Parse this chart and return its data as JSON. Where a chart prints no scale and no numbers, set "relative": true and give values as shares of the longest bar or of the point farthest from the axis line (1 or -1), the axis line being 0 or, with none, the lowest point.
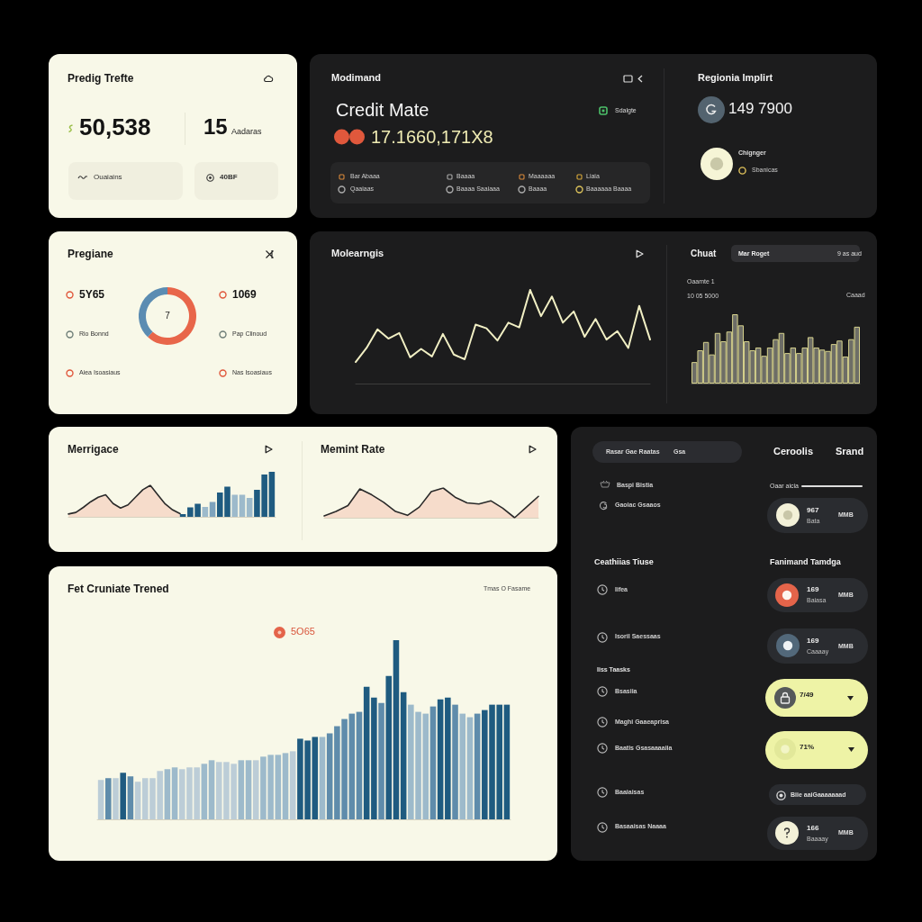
{
  "chart_data": [
    {
      "type": "other",
      "title": "Predig Trefte",
      "annotations": [
        "50,538",
        "15",
        "Aadaras",
        "Ouaiains",
        "40BF"
      ]
    },
    {
      "type": "other",
      "title": "Modimand",
      "annotations": [
        "Credit Mate",
        "17.1660,171X8",
        "Sdalgte",
        "Bar Abaaa",
        "Qaaiaas",
        "Baaaa",
        "Baaaa Saaiaaa",
        "Maaaaaa",
        "Baaaa",
        "Liaia",
        "Baaaaaa Baaaa"
      ]
    },
    {
      "type": "other",
      "title": "Regionia Implirt",
      "annotations": [
        "149 7900",
        "Chignger",
        "Sbanicas"
      ]
    },
    {
      "type": "donut",
      "title": "Pregiane",
      "categories": [
        null,
        null
      ],
      "values": [
        62,
        38
      ],
      "colors": [
        "#e8664a",
        "#5b8cb2"
      ],
      "annotations": [
        "7",
        "5Y65",
        "Rio Bonnd",
        "Aiea Isoasiaus",
        "1069",
        "Pap Clinoud",
        "Nas Isoasiaus"
      ]
    },
    {
      "type": "line",
      "title": "Molearngis",
      "relative": true,
      "categories": [
        null,
        null,
        null,
        null,
        null,
        null,
        null,
        null,
        null,
        null,
        null,
        null,
        null,
        null,
        null,
        null,
        null,
        null,
        null,
        null,
        null,
        null,
        null,
        null,
        null,
        null,
        null,
        null
      ],
      "values": [
        0.23,
        0.38,
        0.58,
        0.48,
        0.54,
        0.28,
        0.37,
        0.29,
        0.53,
        0.31,
        0.26,
        0.63,
        0.59,
        0.46,
        0.65,
        0.6,
        1.0,
        0.72,
        0.93,
        0.65,
        0.77,
        0.5,
        0.69,
        0.47,
        0.56,
        0.38,
        0.83,
        0.47
      ],
      "color": "#f1efc4"
    },
    {
      "type": "bar",
      "title": "Chuat",
      "relative": true,
      "categories": [
        null,
        null,
        null,
        null,
        null,
        null,
        null,
        null,
        null,
        null,
        null,
        null,
        null,
        null,
        null,
        null,
        null,
        null,
        null,
        null,
        null,
        null,
        null,
        null,
        null,
        null,
        null,
        null,
        null
      ],
      "values": [
        0.31,
        0.48,
        0.6,
        0.42,
        0.73,
        0.61,
        0.75,
        1.0,
        0.84,
        0.61,
        0.48,
        0.52,
        0.4,
        0.52,
        0.64,
        0.73,
        0.44,
        0.52,
        0.44,
        0.52,
        0.67,
        0.52,
        0.49,
        0.47,
        0.57,
        0.62,
        0.39,
        0.64,
        0.82
      ],
      "color": "#6d6d66",
      "annotations": [
        "Mar Roget",
        "9 as aud",
        "Oaamte 1",
        "10 05 5000",
        "Caaad"
      ]
    },
    {
      "type": "area",
      "title": "Merrigace",
      "relative": true,
      "categories": [
        null,
        null,
        null,
        null,
        null,
        null,
        null,
        null,
        null,
        null,
        null,
        null,
        null,
        null,
        null,
        null
      ],
      "values": [
        0.09,
        0.14,
        0.3,
        0.48,
        0.62,
        0.7,
        0.42,
        0.28,
        0.38,
        0.62,
        0.86,
        1.0,
        0.7,
        0.41,
        0.22,
        0.1
      ],
      "color": "#f6dccb"
    },
    {
      "type": "bar",
      "relative": true,
      "categories": [
        null,
        null,
        null,
        null,
        null,
        null,
        null,
        null,
        null,
        null,
        null,
        null,
        null
      ],
      "values": [
        0.06,
        0.21,
        0.29,
        0.22,
        0.33,
        0.54,
        0.67,
        0.49,
        0.49,
        0.42,
        0.6,
        0.94,
        1.0
      ],
      "colors": [
        "#1f5b80",
        "#1f5b80",
        "#1f5b80",
        "#9dbacb",
        "#7ea3bd",
        "#1f5b80",
        "#1f5b80",
        "#9dbacb",
        "#9dbacb",
        "#9dbacb",
        "#1f5b80",
        "#1f5b80",
        "#1f5b80"
      ]
    },
    {
      "type": "area",
      "title": "Memint Rate",
      "relative": true,
      "categories": [
        null,
        null,
        null,
        null,
        null,
        null,
        null,
        null,
        null,
        null,
        null,
        null,
        null,
        null,
        null,
        null,
        null,
        null,
        null
      ],
      "values": [
        0.06,
        0.21,
        0.41,
        0.97,
        0.77,
        0.52,
        0.21,
        0.08,
        0.36,
        0.88,
        1.0,
        0.69,
        0.5,
        0.46,
        0.57,
        0.32,
        0.0,
        0.36,
        0.72
      ],
      "color": "#f6dccb"
    },
    {
      "type": "bar",
      "title": "Fet Cruniate Trened",
      "relative": true,
      "categories": [
        null,
        null,
        null,
        null,
        null,
        null,
        null,
        null,
        null,
        null,
        null,
        null,
        null,
        null,
        null,
        null,
        null,
        null,
        null,
        null,
        null,
        null,
        null,
        null,
        null,
        null,
        null,
        null,
        null,
        null,
        null,
        null,
        null,
        null,
        null,
        null,
        null,
        null,
        null,
        null,
        null,
        null,
        null,
        null,
        null,
        null,
        null,
        null,
        null,
        null,
        null,
        null,
        null,
        null,
        null,
        null
      ],
      "values": [
        0.22,
        0.23,
        0.23,
        0.26,
        0.24,
        0.21,
        0.23,
        0.23,
        0.27,
        0.28,
        0.29,
        0.28,
        0.29,
        0.29,
        0.31,
        0.33,
        0.32,
        0.32,
        0.31,
        0.33,
        0.33,
        0.33,
        0.35,
        0.36,
        0.36,
        0.37,
        0.38,
        0.45,
        0.44,
        0.46,
        0.46,
        0.48,
        0.52,
        0.56,
        0.59,
        0.6,
        0.74,
        0.68,
        0.65,
        0.8,
        1.0,
        0.71,
        0.64,
        0.6,
        0.59,
        0.63,
        0.67,
        0.68,
        0.64,
        0.59,
        0.57,
        0.59,
        0.61,
        0.64,
        0.64,
        0.64
      ],
      "colors": [
        "#bccdd7",
        "#5f8cab",
        "#bccdd7",
        "#1f5b80",
        "#5f8cab",
        "#bccdd7",
        "#bccdd7",
        "#bccdd7",
        "#bccdd7",
        "#9dbacb",
        "#9dbacb",
        "#bccdd7",
        "#bccdd7",
        "#bccdd7",
        "#9dbacb",
        "#9dbacb",
        "#bccdd7",
        "#bccdd7",
        "#bccdd7",
        "#9dbacb",
        "#9dbacb",
        "#bccdd7",
        "#9dbacb",
        "#9dbacb",
        "#9dbacb",
        "#9dbacb",
        "#bccdd7",
        "#1f5b80",
        "#1f5b80",
        "#1f5b80",
        "#9dbacb",
        "#5f8cab",
        "#5f8cab",
        "#5f8cab",
        "#5f8cab",
        "#5f8cab",
        "#1f5b80",
        "#1f5b80",
        "#5f8cab",
        "#1f5b80",
        "#1f5b80",
        "#1f5b80",
        "#9dbacb",
        "#9dbacb",
        "#9dbacb",
        "#5f8cab",
        "#1f5b80",
        "#1f5b80",
        "#5f8cab",
        "#9dbacb",
        "#9dbacb",
        "#5f8cab",
        "#1f5b80",
        "#1f5b80",
        "#1f5b80",
        "#1f5b80"
      ],
      "annotations": [
        "5O65",
        "Tmas O Fasame"
      ]
    },
    {
      "type": "other",
      "annotations": [
        "Rasar Gae Raatas",
        "Gsa",
        "Ceroolis",
        "Srand",
        "Baspi Bistia",
        "Gaoiac Gsaaos",
        "Oaar aicia",
        "967",
        "Bata",
        "MMB",
        "Ceathiias Tiuse",
        "Fanimand Tamdga",
        "Iifea",
        "169",
        "Baiasa",
        "MMB",
        "Isoril Saessaas",
        "169",
        "Caaaay",
        "MMB",
        "Iiss Taasks",
        "Bsasiia",
        "7/49",
        "Maghi Gaaeaprisa",
        "71%",
        "Baatis Gsasaaaaiia",
        "Baaiaisas",
        "Biie aaiGaaaaaaad",
        "Basaaisas Naaaa",
        "166",
        "Baaaay",
        "MMB"
      ]
    }
  ]
}
